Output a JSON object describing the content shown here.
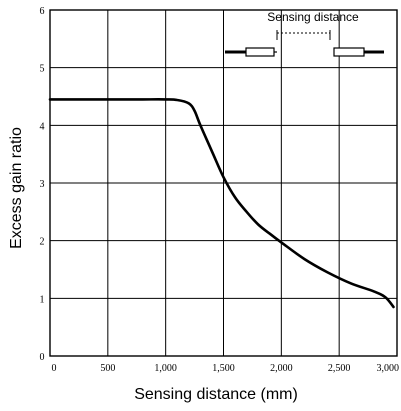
{
  "chart_data": {
    "type": "line",
    "xlabel": "Sensing distance (mm)",
    "ylabel": "Excess gain ratio",
    "xlim": [
      0,
      3000
    ],
    "ylim": [
      0,
      6
    ],
    "x_ticks": [
      {
        "value": 0,
        "label": "0"
      },
      {
        "value": 500,
        "label": "500"
      },
      {
        "value": 1000,
        "label": "1,000"
      },
      {
        "value": 1500,
        "label": "1,500"
      },
      {
        "value": 2000,
        "label": "2,000"
      },
      {
        "value": 2500,
        "label": "2,500"
      },
      {
        "value": 3000,
        "label": "3,000"
      }
    ],
    "y_ticks": [
      {
        "value": 0,
        "label": "0"
      },
      {
        "value": 1,
        "label": "1"
      },
      {
        "value": 2,
        "label": "2"
      },
      {
        "value": 3,
        "label": "3"
      },
      {
        "value": 4,
        "label": "4"
      },
      {
        "value": 5,
        "label": "5"
      },
      {
        "value": 6,
        "label": "6"
      }
    ],
    "grid": true,
    "series": [
      {
        "x": [
          0,
          200,
          400,
          600,
          800,
          1000,
          1100,
          1200,
          1250,
          1300,
          1400,
          1500,
          1600,
          1700,
          1800,
          1900,
          2000,
          2200,
          2400,
          2600,
          2800,
          2900,
          2970
        ],
        "y": [
          4.45,
          4.45,
          4.45,
          4.45,
          4.45,
          4.45,
          4.44,
          4.38,
          4.25,
          4.0,
          3.55,
          3.1,
          2.75,
          2.5,
          2.28,
          2.12,
          1.97,
          1.68,
          1.45,
          1.26,
          1.12,
          1.02,
          0.85
        ]
      }
    ],
    "annotation": {
      "label": "Sensing distance"
    }
  }
}
